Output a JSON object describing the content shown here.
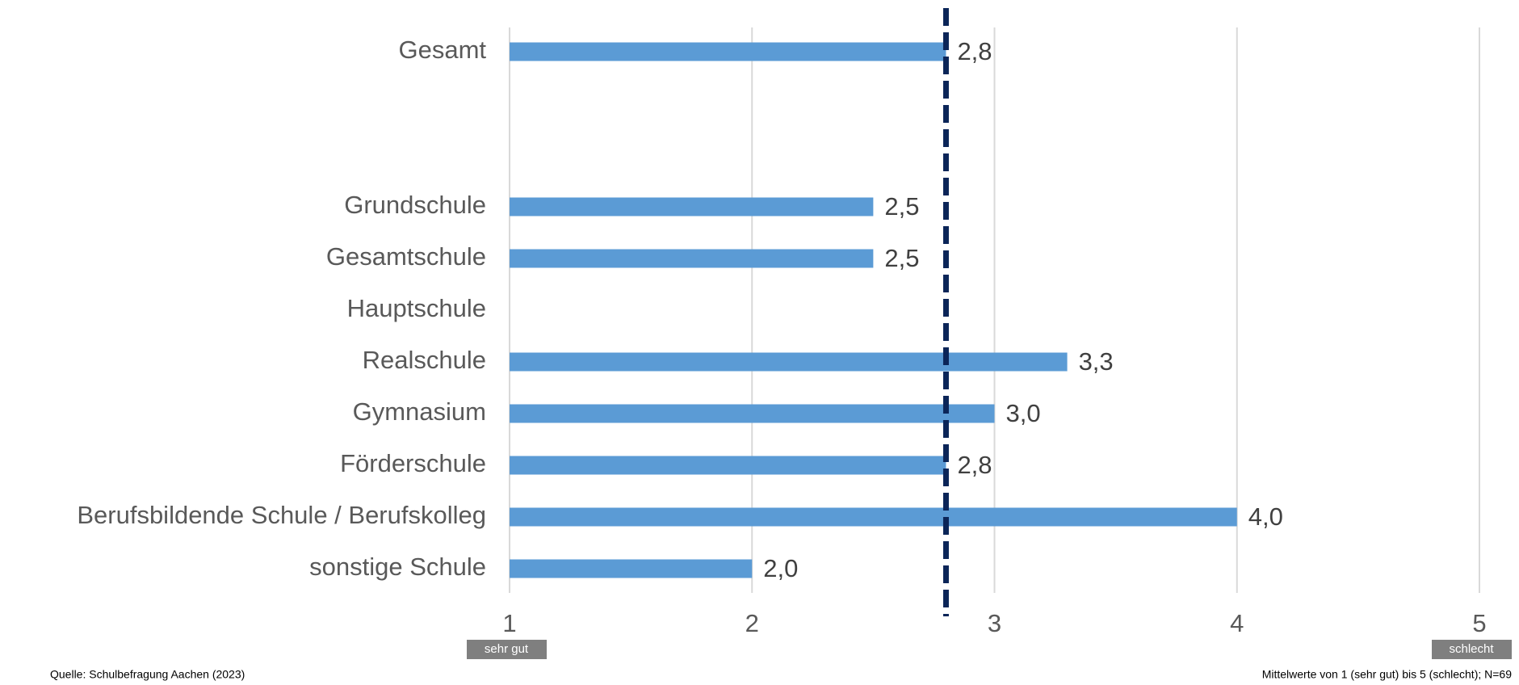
{
  "chart_data": {
    "type": "hbar",
    "categories": [
      "Gesamt",
      null,
      null,
      "Grundschule",
      "Gesamtschule",
      "Hauptschule",
      "Realschule",
      "Gymnasium",
      "Förderschule",
      "Berufsbildende Schule / Berufskolleg",
      "sonstige Schule"
    ],
    "values": [
      2.8,
      null,
      null,
      2.5,
      2.5,
      null,
      3.3,
      3.0,
      2.8,
      4.0,
      2.0
    ],
    "value_labels": [
      "2,8",
      null,
      null,
      "2,5",
      "2,5",
      null,
      "3,3",
      "3,0",
      "2,8",
      "4,0",
      "2,0"
    ],
    "color": "#5b9bd5",
    "xlim": [
      1,
      5
    ],
    "xticks": [
      1,
      2,
      3,
      4,
      5
    ],
    "grid": true,
    "reference_line": {
      "value": 2.8,
      "color": "#0b2558"
    },
    "scale_low_label": "sehr gut",
    "scale_high_label": "schlecht",
    "source": "Quelle: Schulbefragung Aachen (2023)",
    "note": "Mittelwerte von 1 (sehr gut) bis 5 (schlecht); N=69"
  }
}
